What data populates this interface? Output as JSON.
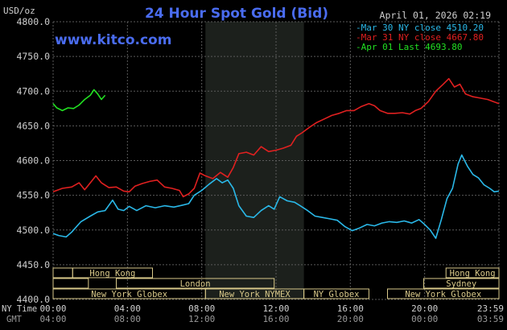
{
  "header": {
    "unit": "USD/oz",
    "title": "24 Hour Spot Gold (Bid)",
    "timestamp": "April 01, 2026 02:19",
    "watermark": "www.kitco.com"
  },
  "colors": {
    "background": "#000000",
    "grid": "#5a5a5a",
    "title": "#4a6cf0",
    "watermark": "#4a6cf0",
    "text": "#cfcfcf",
    "nymex_band": "#1c201c",
    "session_fill": "#d9c98a",
    "mar30": "#2ab8e8",
    "mar31": "#e02020",
    "apr01": "#22e022"
  },
  "chart_data": {
    "type": "line",
    "ylim": [
      4400,
      4800
    ],
    "yticks": [
      "4800.0",
      "4750.0",
      "4700.0",
      "4650.0",
      "4600.0",
      "4550.0",
      "4500.0",
      "4450.0",
      "4400.0"
    ],
    "ytick_values": [
      4800,
      4750,
      4700,
      4650,
      4600,
      4550,
      4500,
      4450,
      4400
    ],
    "xlim": [
      0,
      24
    ],
    "x_unit": "hours (NY Time)",
    "xticks_ny_label": "NY Time",
    "xticks_gmt_label": "GMT",
    "xticks_ny": [
      "00:00",
      "04:00",
      "08:00",
      "12:00",
      "16:00",
      "20:00",
      "23:59"
    ],
    "xticks_gmt": [
      "04:00",
      "08:00",
      "12:00",
      "16:00",
      "20:00",
      "00:00",
      "03:59"
    ],
    "xtick_positions": [
      0,
      4,
      8,
      12,
      16,
      20,
      24
    ],
    "grid": true,
    "legend_position": "top-right",
    "nymex_band_hours": [
      8.2,
      13.5
    ],
    "series": [
      {
        "name": "Mar 30 NY close 4510.20",
        "color_key": "mar30",
        "points": [
          [
            0,
            4495
          ],
          [
            0.3,
            4492
          ],
          [
            0.7,
            4490
          ],
          [
            1.0,
            4497
          ],
          [
            1.5,
            4512
          ],
          [
            2.0,
            4520
          ],
          [
            2.4,
            4526
          ],
          [
            2.8,
            4528
          ],
          [
            3.2,
            4543
          ],
          [
            3.5,
            4530
          ],
          [
            3.8,
            4528
          ],
          [
            4.1,
            4534
          ],
          [
            4.5,
            4528
          ],
          [
            5.0,
            4535
          ],
          [
            5.5,
            4532
          ],
          [
            6.0,
            4535
          ],
          [
            6.5,
            4533
          ],
          [
            7.0,
            4536
          ],
          [
            7.3,
            4538
          ],
          [
            7.6,
            4550
          ],
          [
            8.0,
            4557
          ],
          [
            8.4,
            4566
          ],
          [
            8.8,
            4574
          ],
          [
            9.1,
            4568
          ],
          [
            9.4,
            4572
          ],
          [
            9.7,
            4560
          ],
          [
            10.0,
            4535
          ],
          [
            10.4,
            4520
          ],
          [
            10.8,
            4518
          ],
          [
            11.2,
            4528
          ],
          [
            11.6,
            4535
          ],
          [
            11.9,
            4530
          ],
          [
            12.2,
            4548
          ],
          [
            12.6,
            4542
          ],
          [
            13.0,
            4540
          ],
          [
            13.3,
            4535
          ],
          [
            13.7,
            4528
          ],
          [
            14.1,
            4520
          ],
          [
            14.5,
            4518
          ],
          [
            14.9,
            4516
          ],
          [
            15.3,
            4514
          ],
          [
            15.7,
            4505
          ],
          [
            16.1,
            4499
          ],
          [
            16.5,
            4503
          ],
          [
            16.9,
            4508
          ],
          [
            17.3,
            4506
          ],
          [
            17.7,
            4510
          ],
          [
            18.1,
            4512
          ],
          [
            18.5,
            4511
          ],
          [
            18.9,
            4513
          ],
          [
            19.3,
            4510
          ],
          [
            19.7,
            4515
          ],
          [
            20.0,
            4508
          ],
          [
            20.3,
            4500
          ],
          [
            20.6,
            4488
          ],
          [
            20.9,
            4515
          ],
          [
            21.2,
            4545
          ],
          [
            21.5,
            4560
          ],
          [
            21.8,
            4595
          ],
          [
            22.0,
            4608
          ],
          [
            22.3,
            4592
          ],
          [
            22.6,
            4580
          ],
          [
            22.9,
            4575
          ],
          [
            23.2,
            4565
          ],
          [
            23.5,
            4560
          ],
          [
            23.75,
            4555
          ],
          [
            24.0,
            4556
          ]
        ]
      },
      {
        "name": "Mar 31 NY close 4667.80",
        "color_key": "mar31",
        "points": [
          [
            0,
            4555
          ],
          [
            0.5,
            4560
          ],
          [
            1.0,
            4562
          ],
          [
            1.4,
            4568
          ],
          [
            1.7,
            4558
          ],
          [
            2.0,
            4568
          ],
          [
            2.3,
            4578
          ],
          [
            2.6,
            4568
          ],
          [
            3.0,
            4561
          ],
          [
            3.4,
            4562
          ],
          [
            3.8,
            4556
          ],
          [
            4.1,
            4555
          ],
          [
            4.4,
            4563
          ],
          [
            4.8,
            4567
          ],
          [
            5.2,
            4570
          ],
          [
            5.6,
            4572
          ],
          [
            6.0,
            4562
          ],
          [
            6.4,
            4560
          ],
          [
            6.8,
            4557
          ],
          [
            7.0,
            4548
          ],
          [
            7.3,
            4552
          ],
          [
            7.6,
            4560
          ],
          [
            7.9,
            4582
          ],
          [
            8.2,
            4578
          ],
          [
            8.6,
            4574
          ],
          [
            9.0,
            4583
          ],
          [
            9.4,
            4576
          ],
          [
            9.7,
            4590
          ],
          [
            10.0,
            4610
          ],
          [
            10.4,
            4612
          ],
          [
            10.8,
            4608
          ],
          [
            11.2,
            4620
          ],
          [
            11.6,
            4613
          ],
          [
            12.0,
            4615
          ],
          [
            12.4,
            4618
          ],
          [
            12.8,
            4622
          ],
          [
            13.1,
            4635
          ],
          [
            13.4,
            4640
          ],
          [
            13.8,
            4648
          ],
          [
            14.2,
            4655
          ],
          [
            14.6,
            4660
          ],
          [
            15.0,
            4665
          ],
          [
            15.4,
            4668
          ],
          [
            15.8,
            4672
          ],
          [
            16.2,
            4672
          ],
          [
            16.6,
            4678
          ],
          [
            17.0,
            4682
          ],
          [
            17.3,
            4679
          ],
          [
            17.6,
            4672
          ],
          [
            18.0,
            4668
          ],
          [
            18.4,
            4668
          ],
          [
            18.8,
            4669
          ],
          [
            19.2,
            4667
          ],
          [
            19.5,
            4672
          ],
          [
            19.8,
            4675
          ],
          [
            20.2,
            4685
          ],
          [
            20.6,
            4700
          ],
          [
            21.0,
            4710
          ],
          [
            21.3,
            4718
          ],
          [
            21.6,
            4706
          ],
          [
            21.9,
            4710
          ],
          [
            22.2,
            4696
          ],
          [
            22.6,
            4692
          ],
          [
            23.0,
            4690
          ],
          [
            23.4,
            4688
          ],
          [
            23.7,
            4685
          ],
          [
            24.0,
            4682
          ]
        ]
      },
      {
        "name": "Apr 01 Last 4693.80",
        "color_key": "apr01",
        "points": [
          [
            0,
            4682
          ],
          [
            0.2,
            4676
          ],
          [
            0.5,
            4672
          ],
          [
            0.8,
            4676
          ],
          [
            1.1,
            4675
          ],
          [
            1.4,
            4680
          ],
          [
            1.7,
            4688
          ],
          [
            2.0,
            4694
          ],
          [
            2.2,
            4702
          ],
          [
            2.4,
            4696
          ],
          [
            2.6,
            4688
          ],
          [
            2.8,
            4694
          ]
        ]
      }
    ],
    "sessions": [
      {
        "label": "Hong Kong",
        "row": 0,
        "start": 1.05,
        "end": 5.35
      },
      {
        "label": "London",
        "row": 1,
        "start": 3.4,
        "end": 11.9
      },
      {
        "label": "New York Globex",
        "row": 2,
        "start": 0,
        "end": 8.2
      },
      {
        "label": "New York NYMEX",
        "row": 2,
        "start": 8.2,
        "end": 13.5
      },
      {
        "label": "NY Globex",
        "row": 2,
        "start": 13.5,
        "end": 17.0
      },
      {
        "label": "Hong Kong",
        "row": 0,
        "start": 21.15,
        "end": 24
      },
      {
        "label": "Sydney",
        "row": 1,
        "start": 19.95,
        "end": 24
      },
      {
        "label": "New York Globex",
        "row": 2,
        "start": 18.0,
        "end": 24
      }
    ],
    "session_left_edge_stubs": [
      {
        "row": 0,
        "start": 0,
        "end": 1.05
      },
      {
        "row": 1,
        "start": 0,
        "end": 1.9
      }
    ]
  }
}
